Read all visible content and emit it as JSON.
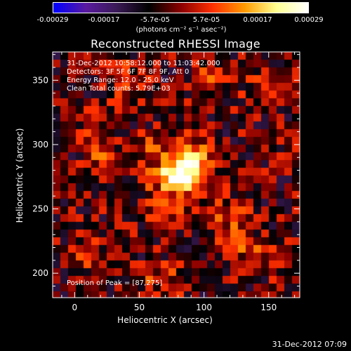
{
  "colorbar": {
    "ticks": [
      "-0.00029",
      "-0.00017",
      "-5.7e-05",
      "5.7e-05",
      "0.00017",
      "0.00029"
    ],
    "unit": "(photons cm⁻² s⁻¹ asec⁻²)",
    "range": [
      -0.00029,
      0.00029
    ]
  },
  "title": "Reconstructed RHESSI Image",
  "info": {
    "time": "31-Dec-2012 10:58:12.000 to 11:03:42.000",
    "detectors": "Detectors: 3F 5F 6F 7F 8F 9F, Att 0",
    "energy": "Energy Range: 12.0 - 25.0 keV",
    "method": "Clean    Total counts: 5.79E+03"
  },
  "peak_label": "Position of Peak = [87,275]",
  "timestamp": "31-Dec-2012 07:09",
  "chart_data": {
    "type": "heatmap",
    "title": "Reconstructed RHESSI Image",
    "xlabel": "Heliocentric X (arcsec)",
    "ylabel": "Heliocentric Y (arcsec)",
    "xlim": [
      -17,
      174
    ],
    "ylim": [
      181,
      372
    ],
    "x_ticks": [
      "0",
      "50",
      "100",
      "150"
    ],
    "x_tick_values": [
      0,
      50,
      100,
      150
    ],
    "y_ticks": [
      "200",
      "250",
      "300",
      "350"
    ],
    "y_tick_values": [
      200,
      250,
      300,
      350
    ],
    "peak": [
      87,
      275
    ],
    "colormap": [
      "#0000ff",
      "#5a1aa0",
      "#3a1a55",
      "#000000",
      "#8b0000",
      "#ff3000",
      "#ff9a00",
      "#ffff90",
      "#ffffff"
    ],
    "sources": [
      {
        "x": 80,
        "y": 275,
        "sx": 12,
        "sy": 10,
        "amp": 1.0
      },
      {
        "x": 92,
        "y": 288,
        "sx": 9,
        "sy": 12,
        "amp": 0.55
      },
      {
        "x": 58,
        "y": 296,
        "sx": 10,
        "sy": 8,
        "amp": 0.35
      },
      {
        "x": 70,
        "y": 248,
        "sx": 10,
        "sy": 9,
        "amp": 0.32
      },
      {
        "x": 120,
        "y": 240,
        "sx": 10,
        "sy": 12,
        "amp": 0.3
      },
      {
        "x": 140,
        "y": 215,
        "sx": 12,
        "sy": 10,
        "amp": 0.28
      },
      {
        "x": 20,
        "y": 300,
        "sx": 9,
        "sy": 14,
        "amp": 0.3
      },
      {
        "x": 10,
        "y": 215,
        "sx": 12,
        "sy": 8,
        "amp": 0.25
      },
      {
        "x": 70,
        "y": 195,
        "sx": 12,
        "sy": 8,
        "amp": 0.3
      },
      {
        "x": 150,
        "y": 345,
        "sx": 12,
        "sy": 10,
        "amp": 0.22
      },
      {
        "x": 105,
        "y": 350,
        "sx": 10,
        "sy": 10,
        "amp": 0.22
      },
      {
        "x": 40,
        "y": 350,
        "sx": 10,
        "sy": 12,
        "amp": 0.22
      }
    ]
  }
}
